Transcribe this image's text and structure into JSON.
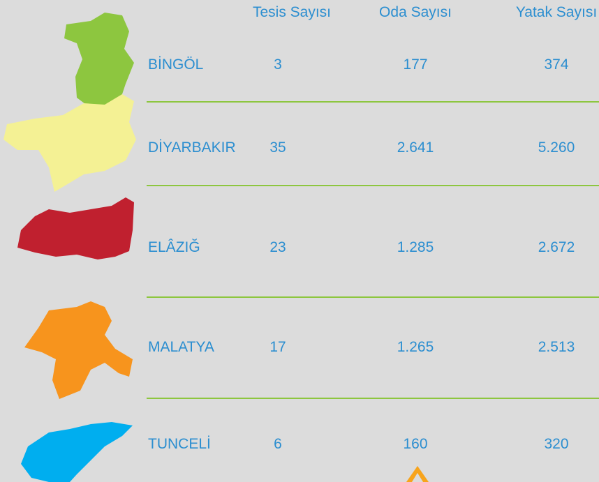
{
  "table": {
    "columns": [
      "Tesis Sayısı",
      "Oda Sayısı",
      "Yatak Sayısı"
    ],
    "rows": [
      [
        "BİNGÖL",
        "3",
        "177",
        "374"
      ],
      [
        "DİYARBAKIR",
        "35",
        "2.641",
        "5.260"
      ],
      [
        "ELÂZIĞ",
        "23",
        "1.285",
        "2.672"
      ],
      [
        "MALATYA",
        "17",
        "1.265",
        "2.513"
      ],
      [
        "TUNCELİ",
        "6",
        "160",
        "320"
      ]
    ]
  }
}
